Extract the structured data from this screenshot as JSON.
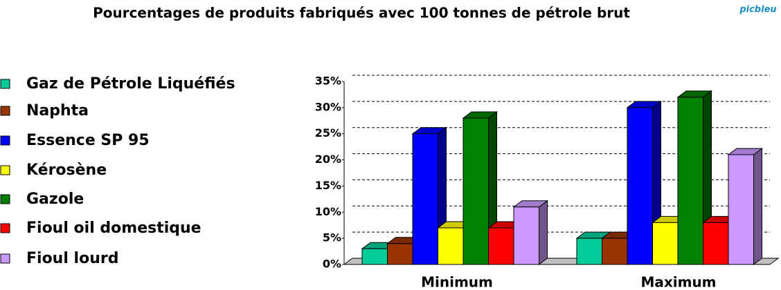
{
  "chart_data": {
    "type": "bar3d",
    "title": "Pourcentages de produits fabriqués avec 100 tonnes de pétrole brut",
    "logo": "picbleu",
    "categories": [
      "Minimum",
      "Maximum"
    ],
    "series": [
      {
        "name": "Gaz de Pétrole Liquéfiés",
        "color": "#00cc99",
        "values": [
          3,
          5
        ]
      },
      {
        "name": "Naphta",
        "color": "#993300",
        "values": [
          4,
          5
        ]
      },
      {
        "name": "Essence  SP 95",
        "color": "#0000ff",
        "values": [
          25,
          30
        ]
      },
      {
        "name": "Kérosène",
        "color": "#ffff00",
        "values": [
          7,
          8
        ]
      },
      {
        "name": "Gazole",
        "color": "#008000",
        "values": [
          28,
          32
        ]
      },
      {
        "name": "Fioul oil domestique",
        "color": "#ff0000",
        "values": [
          7,
          8
        ]
      },
      {
        "name": "Fioul lourd",
        "color": "#cc99ff",
        "values": [
          11,
          21
        ]
      }
    ],
    "ylim": [
      0,
      35
    ],
    "yticks": [
      {
        "value": 0,
        "label": "0%"
      },
      {
        "value": 5,
        "label": "5%"
      },
      {
        "value": 10,
        "label": "10%"
      },
      {
        "value": 15,
        "label": "15%"
      },
      {
        "value": 20,
        "label": "20%"
      },
      {
        "value": 25,
        "label": "25%"
      },
      {
        "value": 30,
        "label": "30%"
      },
      {
        "value": 35,
        "label": "35%"
      }
    ],
    "grid": true,
    "legend": "left"
  }
}
